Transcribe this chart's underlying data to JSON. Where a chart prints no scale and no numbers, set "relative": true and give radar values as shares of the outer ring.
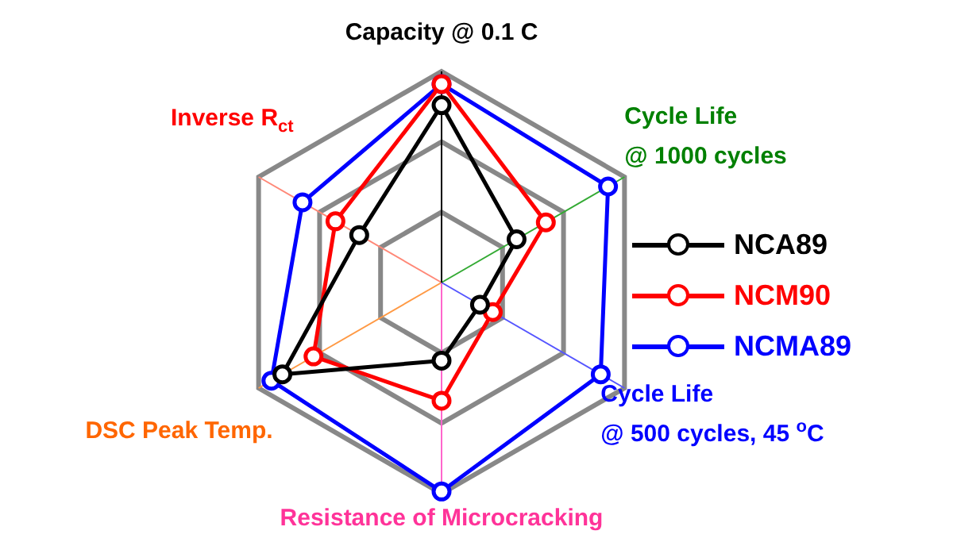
{
  "chart_data": {
    "type": "radar",
    "relative": true,
    "categories": [
      "Capacity @ 0.1 C",
      "Cycle Life\n@ 1000 cycles",
      "Cycle Life\n@ 500 cycles, 45 $^{o}$C",
      "Resistance of Microcracking",
      "DSC Peak Temp.",
      "Inverse R$_{ct}$"
    ],
    "series": [
      {
        "name": "NCA89",
        "color": "#000000",
        "values": [
          0.84,
          0.41,
          0.21,
          0.37,
          0.87,
          0.45
        ]
      },
      {
        "name": "NCM90",
        "color": "#ff0000",
        "values": [
          0.94,
          0.57,
          0.28,
          0.56,
          0.7,
          0.58
        ]
      },
      {
        "name": "NCMA89",
        "color": "#0000ff",
        "values": [
          0.94,
          0.91,
          0.87,
          0.99,
          0.93,
          0.76
        ]
      }
    ],
    "grid": true,
    "legend": "right",
    "marker": "circle"
  }
}
